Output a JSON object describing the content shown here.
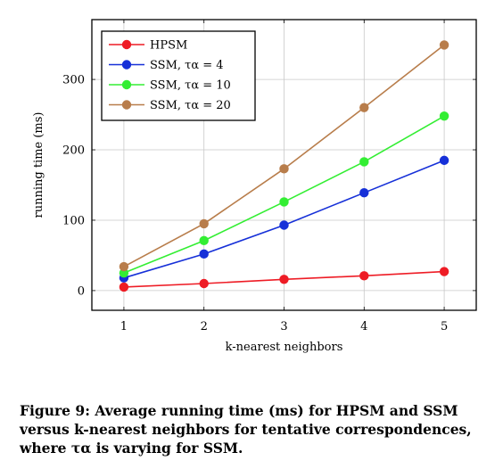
{
  "chart_data": {
    "type": "line",
    "x": [
      1,
      2,
      3,
      4,
      5
    ],
    "xlabel": "k-nearest neighbors",
    "ylabel": "running time (ms)",
    "xlim": [
      0.6,
      5.4
    ],
    "ylim": [
      -28,
      385
    ],
    "xticks": [
      1,
      2,
      3,
      4,
      5
    ],
    "yticks": [
      0,
      100,
      200,
      300
    ],
    "grid": true,
    "legend": "top-left",
    "series": [
      {
        "name": "HPSM",
        "color": "#ee1c25",
        "values": [
          5,
          10,
          16,
          21,
          27
        ]
      },
      {
        "name": "SSM, τα = 4",
        "color": "#1630d8",
        "values": [
          18,
          52,
          93,
          139,
          185
        ]
      },
      {
        "name": "SSM, τα = 10",
        "color": "#33ee33",
        "values": [
          25,
          71,
          126,
          183,
          248
        ]
      },
      {
        "name": "SSM, τα = 20",
        "color": "#b87d4b",
        "values": [
          34,
          95,
          173,
          260,
          349
        ]
      }
    ]
  },
  "caption": "Figure 9: Average running time (ms) for HPSM and SSM versus k-nearest neighbors for tentative correspondences, where τα is varying for SSM."
}
